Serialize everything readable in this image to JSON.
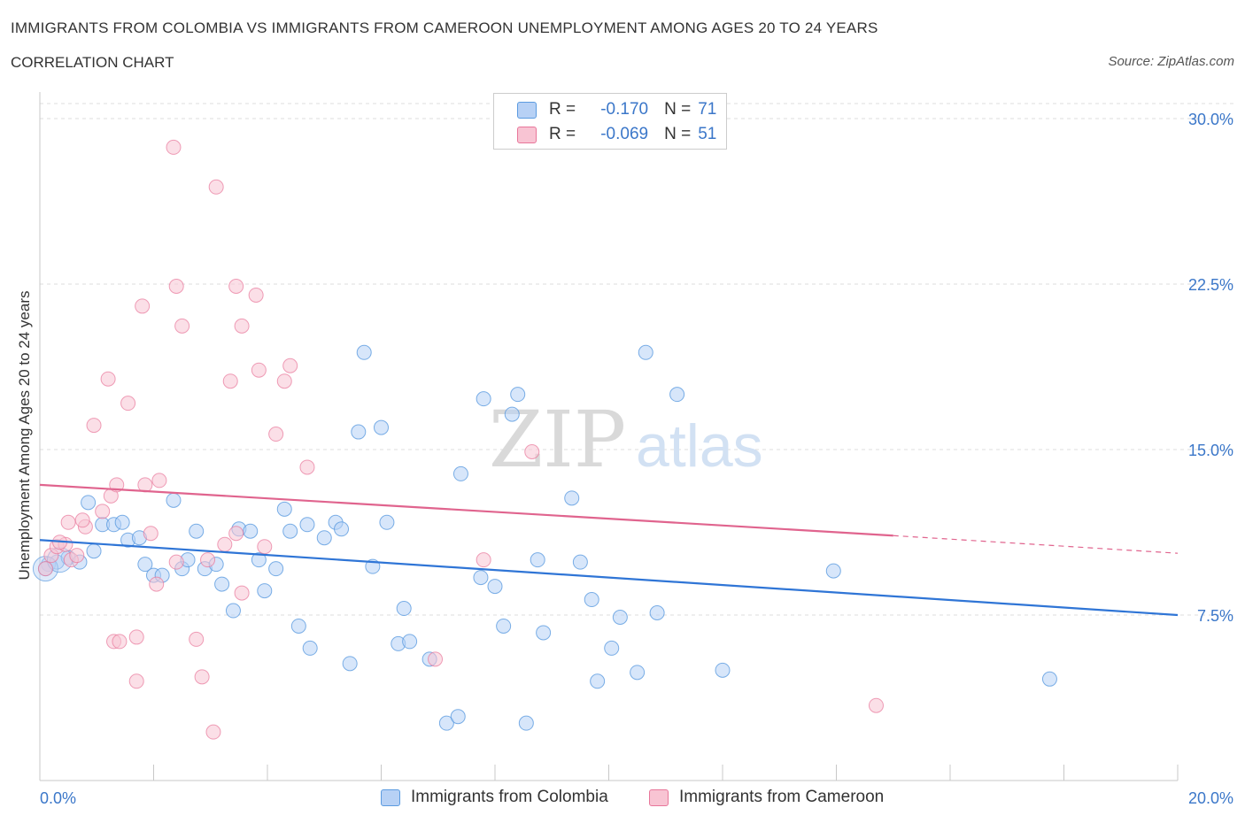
{
  "title": "IMMIGRANTS FROM COLOMBIA VS IMMIGRANTS FROM CAMEROON UNEMPLOYMENT AMONG AGES 20 TO 24 YEARS",
  "subtitle": "CORRELATION CHART",
  "source": "Source: ZipAtlas.com",
  "watermark": {
    "part1": "ZIP",
    "part2": "atlas"
  },
  "legend": {
    "rows": [
      {
        "r_label": "R =",
        "r_value": "-0.170",
        "n_label": "N =",
        "n_value": "71",
        "color": "#b7d1f5"
      },
      {
        "r_label": "R =",
        "r_value": "-0.069",
        "n_label": "N =",
        "n_value": "51",
        "color": "#f8c4d3"
      }
    ]
  },
  "bottom_legend": {
    "colombia": "Immigrants from Colombia",
    "cameroon": "Immigrants from Cameroon"
  },
  "chart_data": {
    "type": "scatter",
    "xlim": [
      0,
      20
    ],
    "ylim": [
      0,
      30
    ],
    "xlabel": "",
    "ylabel": "Unemployment Among Ages 20 to 24 years",
    "x_tick_labels": [
      "0.0%",
      "20.0%"
    ],
    "y_ticks": [
      7.5,
      15.0,
      22.5,
      30.0
    ],
    "y_tick_labels": [
      "7.5%",
      "15.0%",
      "22.5%",
      "30.0%"
    ],
    "grid": "horizontal dashed",
    "legend_position": "top-center",
    "series": [
      {
        "name": "Immigrants from Colombia",
        "color": "#5b9be0",
        "fill": "#b7d1f5",
        "trend": {
          "x": [
            0,
            20
          ],
          "y": [
            10.9,
            7.5
          ]
        },
        "points": [
          [
            0.15,
            9.8
          ],
          [
            0.3,
            9.9
          ],
          [
            0.5,
            10.1
          ],
          [
            0.7,
            9.9
          ],
          [
            0.85,
            12.6
          ],
          [
            0.95,
            10.4
          ],
          [
            1.1,
            11.6
          ],
          [
            1.3,
            11.6
          ],
          [
            1.45,
            11.7
          ],
          [
            1.55,
            10.9
          ],
          [
            1.75,
            11.0
          ],
          [
            1.85,
            9.8
          ],
          [
            2.0,
            9.3
          ],
          [
            2.15,
            9.3
          ],
          [
            2.35,
            12.7
          ],
          [
            2.5,
            9.6
          ],
          [
            2.6,
            10.0
          ],
          [
            2.75,
            11.3
          ],
          [
            2.9,
            9.6
          ],
          [
            3.1,
            9.8
          ],
          [
            3.2,
            8.9
          ],
          [
            3.4,
            7.7
          ],
          [
            3.5,
            11.4
          ],
          [
            3.7,
            11.3
          ],
          [
            3.85,
            10.0
          ],
          [
            3.95,
            8.6
          ],
          [
            4.15,
            9.6
          ],
          [
            4.3,
            12.3
          ],
          [
            4.4,
            11.3
          ],
          [
            4.55,
            7.0
          ],
          [
            4.7,
            11.6
          ],
          [
            4.75,
            6.0
          ],
          [
            5.0,
            11.0
          ],
          [
            5.2,
            11.7
          ],
          [
            5.3,
            11.4
          ],
          [
            5.45,
            5.3
          ],
          [
            5.6,
            15.8
          ],
          [
            5.7,
            19.4
          ],
          [
            5.85,
            9.7
          ],
          [
            6.0,
            16.0
          ],
          [
            6.1,
            11.7
          ],
          [
            6.3,
            6.2
          ],
          [
            6.4,
            7.8
          ],
          [
            6.5,
            6.3
          ],
          [
            6.85,
            5.5
          ],
          [
            7.15,
            2.6
          ],
          [
            7.35,
            2.9
          ],
          [
            7.4,
            13.9
          ],
          [
            7.75,
            9.2
          ],
          [
            7.8,
            17.3
          ],
          [
            8.0,
            8.8
          ],
          [
            8.15,
            7.0
          ],
          [
            8.3,
            16.6
          ],
          [
            8.4,
            17.5
          ],
          [
            8.55,
            2.6
          ],
          [
            8.75,
            10.0
          ],
          [
            8.85,
            6.7
          ],
          [
            9.35,
            12.8
          ],
          [
            9.5,
            9.9
          ],
          [
            9.7,
            8.2
          ],
          [
            9.8,
            4.5
          ],
          [
            10.05,
            6.0
          ],
          [
            10.2,
            7.4
          ],
          [
            10.5,
            4.9
          ],
          [
            10.65,
            19.4
          ],
          [
            10.85,
            7.6
          ],
          [
            11.2,
            17.5
          ],
          [
            12.0,
            5.0
          ],
          [
            13.95,
            9.5
          ],
          [
            17.75,
            4.6
          ],
          [
            0.1,
            9.6
          ]
        ],
        "big_points": [
          [
            0.1,
            9.6
          ],
          [
            0.35,
            10.0
          ]
        ]
      },
      {
        "name": "Immigrants from Cameroon",
        "color": "#e8769a",
        "fill": "#f8c4d3",
        "trend": {
          "x": [
            0,
            15
          ],
          "y": [
            13.4,
            11.1
          ]
        },
        "trend_ext": {
          "x": [
            15,
            20
          ],
          "y": [
            11.1,
            10.3
          ]
        },
        "points": [
          [
            0.1,
            9.6
          ],
          [
            0.2,
            10.2
          ],
          [
            0.3,
            10.6
          ],
          [
            0.45,
            10.7
          ],
          [
            0.55,
            10.0
          ],
          [
            0.65,
            10.2
          ],
          [
            0.8,
            11.5
          ],
          [
            0.95,
            16.1
          ],
          [
            1.1,
            12.2
          ],
          [
            1.2,
            18.2
          ],
          [
            1.25,
            12.9
          ],
          [
            1.3,
            6.3
          ],
          [
            1.35,
            13.4
          ],
          [
            1.4,
            6.3
          ],
          [
            1.55,
            17.1
          ],
          [
            1.7,
            4.5
          ],
          [
            1.7,
            6.5
          ],
          [
            1.8,
            21.5
          ],
          [
            1.85,
            13.4
          ],
          [
            1.95,
            11.2
          ],
          [
            2.05,
            8.9
          ],
          [
            2.1,
            13.6
          ],
          [
            2.35,
            28.7
          ],
          [
            2.4,
            22.4
          ],
          [
            2.5,
            20.6
          ],
          [
            2.4,
            9.9
          ],
          [
            2.75,
            6.4
          ],
          [
            2.85,
            4.7
          ],
          [
            2.95,
            10.0
          ],
          [
            3.05,
            2.2
          ],
          [
            3.1,
            26.9
          ],
          [
            3.25,
            10.7
          ],
          [
            3.35,
            18.1
          ],
          [
            3.45,
            22.4
          ],
          [
            3.45,
            11.2
          ],
          [
            3.55,
            20.6
          ],
          [
            3.55,
            8.5
          ],
          [
            3.8,
            22.0
          ],
          [
            3.85,
            18.6
          ],
          [
            3.95,
            10.6
          ],
          [
            4.15,
            15.7
          ],
          [
            4.3,
            18.1
          ],
          [
            4.4,
            18.8
          ],
          [
            4.7,
            14.2
          ],
          [
            6.95,
            5.5
          ],
          [
            7.8,
            10.0
          ],
          [
            8.65,
            14.9
          ],
          [
            0.5,
            11.7
          ],
          [
            0.35,
            10.8
          ],
          [
            0.75,
            11.8
          ],
          [
            14.7,
            3.4
          ]
        ]
      }
    ]
  }
}
